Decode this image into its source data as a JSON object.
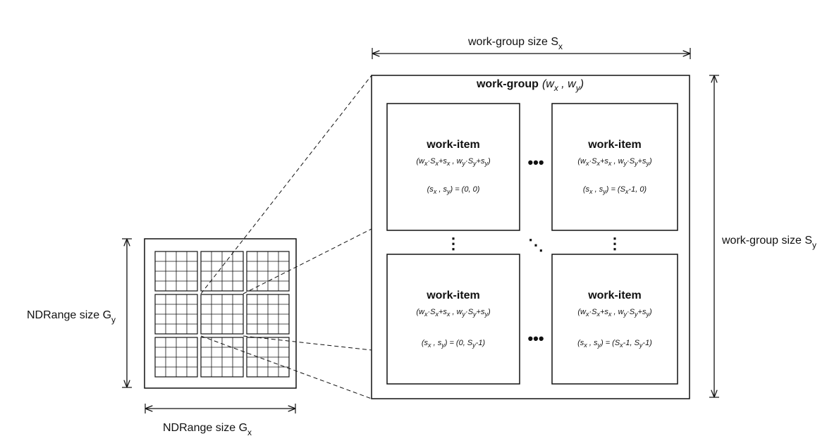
{
  "ndrange": {
    "width_label": {
      "text": "NDRange size G",
      "sub": "x"
    },
    "height_label": {
      "text": "NDRange size G",
      "sub": "y"
    },
    "grid": {
      "blocks": 3,
      "cells_per_block": 4
    }
  },
  "work_group": {
    "title_bold": "work-group",
    "title_italic": "(w",
    "title_sub1": "x",
    "title_mid": " , w",
    "title_sub2": "y",
    "title_end": ")",
    "width_label": {
      "text": "work-group size S",
      "sub": "x"
    },
    "height_label": {
      "text": "work-group size S",
      "sub": "y"
    }
  },
  "work_items": [
    {
      "title": "work-item",
      "coords": {
        "a": "(s",
        "b": " , s",
        "c": ") = (0, 0)"
      }
    },
    {
      "title": "work-item",
      "coords": {
        "a": "(s",
        "b": " , s",
        "c": ") = (S",
        "d": "-1, 0)"
      }
    },
    {
      "title": "work-item",
      "coords": {
        "a": "(s",
        "b": " , s",
        "c": ") = (0, S",
        "d": "-1)"
      }
    },
    {
      "title": "work-item",
      "coords": {
        "a": "(s",
        "b": " , s",
        "c": ") = (S",
        "d": "-1, S",
        "e": "-1)"
      }
    }
  ],
  "ellipsis": {
    "horizontal": "•••",
    "vertical": "⋮",
    "diagonal": "⋱"
  },
  "colors": {
    "ink": "#111111",
    "background": "#ffffff"
  }
}
